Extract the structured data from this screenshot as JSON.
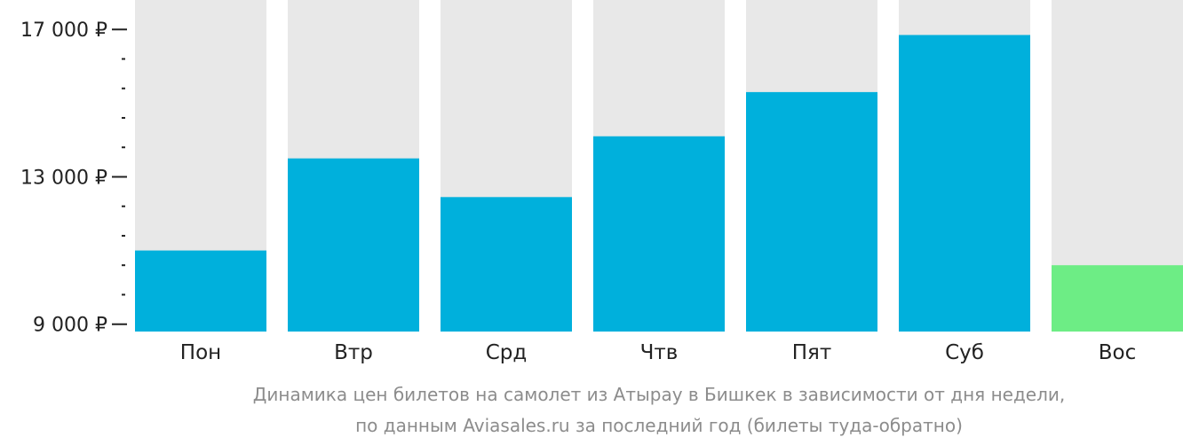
{
  "chart_data": {
    "type": "bar",
    "categories": [
      "Пон",
      "Втр",
      "Срд",
      "Чтв",
      "Пят",
      "Суб",
      "Вос"
    ],
    "values": [
      11000,
      13500,
      12450,
      14100,
      15300,
      16850,
      10600
    ],
    "highlight_index": 6,
    "ylim": [
      8800,
      17800
    ],
    "y_ticks": [
      {
        "value": 9000,
        "label": "9 000 ₽"
      },
      {
        "value": 13000,
        "label": "13 000 ₽"
      },
      {
        "value": 17000,
        "label": "17 000 ₽"
      }
    ],
    "y_minor_step": 800,
    "caption_lines": [
      "Динамика цен билетов на самолет из Атырау в Бишкек в зависимости от дня недели,",
      "по данным Aviasales.ru за последний год (билеты туда-обратно)"
    ],
    "colors": {
      "bar": "#00b0dc",
      "highlight": "#6ded85",
      "background_track": "#e8e8e8",
      "axis": "#222222",
      "caption": "#8c8c8c"
    }
  }
}
